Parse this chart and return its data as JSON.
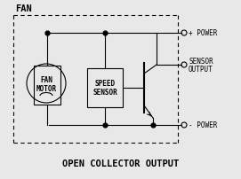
{
  "bg_color": "#e8e8e8",
  "line_color": "#000000",
  "title": "OPEN COLLECTOR OUTPUT",
  "fan_label": "FAN",
  "motor_label1": "FAN",
  "motor_label2": "MOTOR",
  "sensor_label1": "SPEED",
  "sensor_label2": "SENSOR",
  "power_pos": "+ POWER",
  "sensor_out1": "SENSOR",
  "sensor_out2": "OUTPUT",
  "power_neg": "- POWER",
  "title_fontsize": 7.5,
  "label_fontsize": 5.5,
  "connector_fontsize": 5.5,
  "fan_fontsize": 7.5,
  "fig_w": 2.71,
  "fig_h": 2.03,
  "dpi": 100
}
